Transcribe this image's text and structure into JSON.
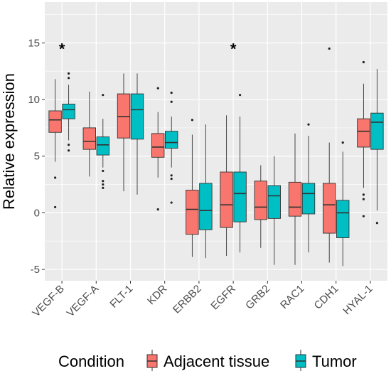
{
  "chart_data": {
    "type": "boxplot",
    "ylabel": "Relative expression",
    "ylim": [
      -6,
      18.6
    ],
    "yticks": [
      -5,
      0,
      5,
      10,
      15
    ],
    "categories": [
      "VEGF-B",
      "VEGF-A",
      "FLT-1",
      "KDR",
      "ERBB2",
      "EGFR",
      "GRB2",
      "RAC1",
      "CDH1",
      "HYAL-1"
    ],
    "legend": {
      "title": "Condition",
      "position": "bottom",
      "entries": [
        {
          "name": "Adjacent tissue",
          "color": "#F8766D"
        },
        {
          "name": "Tumor",
          "color": "#00BFC4"
        }
      ]
    },
    "grid": true,
    "panel_color": "#EBEBEB",
    "significance": [
      {
        "category": "VEGF-B",
        "symbol": "*"
      },
      {
        "category": "EGFR",
        "symbol": "*"
      }
    ],
    "series": [
      {
        "name": "Adjacent tissue",
        "boxes": [
          {
            "category": "VEGF-B",
            "whisker_low": 4.5,
            "q1": 7.1,
            "median": 8.2,
            "q3": 9.0,
            "whisker_high": 11.8,
            "outliers": [
              3.1,
              0.5
            ]
          },
          {
            "category": "VEGF-A",
            "whisker_low": 3.2,
            "q1": 5.6,
            "median": 6.3,
            "q3": 7.5,
            "whisker_high": 10.7,
            "outliers": []
          },
          {
            "category": "FLT-1",
            "whisker_low": 1.9,
            "q1": 6.6,
            "median": 8.5,
            "q3": 10.5,
            "whisker_high": 12.3,
            "outliers": []
          },
          {
            "category": "KDR",
            "whisker_low": 3.1,
            "q1": 4.9,
            "median": 5.8,
            "q3": 7.0,
            "whisker_high": 8.9,
            "outliers": [
              11.0,
              0.3
            ]
          },
          {
            "category": "ERBB2",
            "whisker_low": -3.9,
            "q1": -1.9,
            "median": 0.3,
            "q3": 2.0,
            "whisker_high": 6.9,
            "outliers": [
              8.2
            ]
          },
          {
            "category": "EGFR",
            "whisker_low": -3.8,
            "q1": -1.3,
            "median": 0.7,
            "q3": 3.6,
            "whisker_high": 8.6,
            "outliers": []
          },
          {
            "category": "GRB2",
            "whisker_low": -3.1,
            "q1": -0.6,
            "median": 0.5,
            "q3": 2.8,
            "whisker_high": 4.2,
            "outliers": []
          },
          {
            "category": "RAC1",
            "whisker_low": -4.6,
            "q1": -0.3,
            "median": 0.5,
            "q3": 2.7,
            "whisker_high": 7.0,
            "outliers": []
          },
          {
            "category": "CDH1",
            "whisker_low": -4.4,
            "q1": -1.8,
            "median": 0.7,
            "q3": 2.6,
            "whisker_high": 6.2,
            "outliers": [
              14.5
            ]
          },
          {
            "category": "HYAL-1",
            "whisker_low": 2.2,
            "q1": 5.8,
            "median": 7.2,
            "q3": 8.3,
            "whisker_high": 11.4,
            "outliers": [
              13.3,
              1.6,
              1.2,
              -0.3
            ]
          }
        ]
      },
      {
        "name": "Tumor",
        "boxes": [
          {
            "category": "VEGF-B",
            "whisker_low": 6.4,
            "q1": 8.3,
            "median": 9.1,
            "q3": 9.6,
            "whisker_high": 11.3,
            "outliers": [
              12.3,
              11.9,
              6.0,
              5.5
            ]
          },
          {
            "category": "VEGF-A",
            "whisker_low": 4.0,
            "q1": 5.1,
            "median": 6.0,
            "q3": 6.7,
            "whisker_high": 8.3,
            "outliers": [
              10.4,
              3.7,
              2.8,
              2.5,
              2.2
            ]
          },
          {
            "category": "FLT-1",
            "whisker_low": 1.6,
            "q1": 6.5,
            "median": 9.1,
            "q3": 10.5,
            "whisker_high": 12.3,
            "outliers": []
          },
          {
            "category": "KDR",
            "whisker_low": 4.0,
            "q1": 5.7,
            "median": 6.2,
            "q3": 7.2,
            "whisker_high": 8.5,
            "outliers": [
              10.6,
              9.8,
              3.3,
              3.0,
              0.9
            ]
          },
          {
            "category": "ERBB2",
            "whisker_low": -4.0,
            "q1": -1.5,
            "median": 0.2,
            "q3": 2.6,
            "whisker_high": 7.8,
            "outliers": []
          },
          {
            "category": "EGFR",
            "whisker_low": -3.5,
            "q1": -0.8,
            "median": 1.7,
            "q3": 3.6,
            "whisker_high": 8.5,
            "outliers": [
              10.4
            ]
          },
          {
            "category": "GRB2",
            "whisker_low": -4.6,
            "q1": -0.5,
            "median": 1.5,
            "q3": 2.4,
            "whisker_high": 5.0,
            "outliers": []
          },
          {
            "category": "RAC1",
            "whisker_low": -3.5,
            "q1": -0.1,
            "median": 1.7,
            "q3": 2.6,
            "whisker_high": 6.8,
            "outliers": [
              7.8
            ]
          },
          {
            "category": "CDH1",
            "whisker_low": -4.7,
            "q1": -2.2,
            "median": 0.0,
            "q3": 1.1,
            "whisker_high": 5.4,
            "outliers": [
              6.2
            ]
          },
          {
            "category": "HYAL-1",
            "whisker_low": 0.2,
            "q1": 5.6,
            "median": 8.0,
            "q3": 8.8,
            "whisker_high": 12.7,
            "outliers": [
              -0.9
            ]
          }
        ]
      }
    ]
  }
}
